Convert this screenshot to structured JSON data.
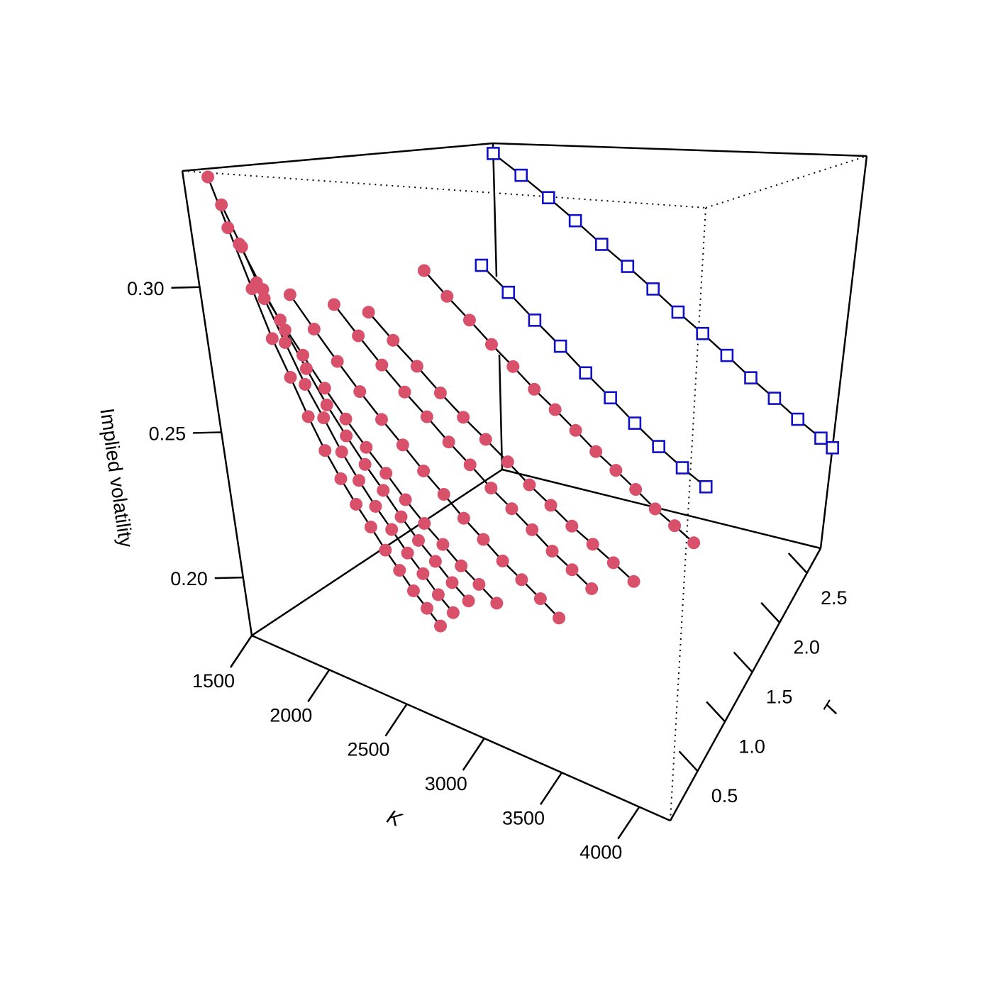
{
  "chart_data": {
    "type": "scatter",
    "title": "",
    "axes": {
      "x": {
        "label": "K",
        "ticks": [
          1500,
          2000,
          2500,
          3000,
          3500,
          4000
        ],
        "tick_labels": [
          "1500",
          "2000",
          "2500",
          "3000",
          "3500",
          "4000"
        ]
      },
      "y": {
        "label": "T",
        "ticks": [
          0.5,
          1.0,
          1.5,
          2.0,
          2.5
        ],
        "tick_labels": [
          "0.5",
          "1.0",
          "1.5",
          "2.0",
          "2.5"
        ]
      },
      "z": {
        "label": "Implied volatility",
        "ticks": [
          0.2,
          0.25,
          0.3
        ],
        "tick_labels": [
          "0.20",
          "0.25",
          "0.30"
        ]
      }
    },
    "marker_colors": {
      "pink": "#d9506b",
      "blue": "#1010c8"
    },
    "series": [
      {
        "marker": "circle",
        "color": "#d9506b",
        "T": 0.083,
        "points": [
          [
            1580,
            0.338
          ],
          [
            1650,
            0.321
          ],
          [
            1740,
            0.301
          ],
          [
            1820,
            0.285
          ],
          [
            1900,
            0.273
          ],
          [
            1980,
            0.261
          ],
          [
            2060,
            0.251
          ],
          [
            2140,
            0.243
          ],
          [
            2220,
            0.236
          ],
          [
            2300,
            0.23
          ],
          [
            2380,
            0.224
          ],
          [
            2460,
            0.219
          ],
          [
            2540,
            0.214
          ],
          [
            2620,
            0.21
          ],
          [
            2700,
            0.206
          ]
        ]
      },
      {
        "marker": "circle",
        "color": "#d9506b",
        "T": 0.17,
        "points": [
          [
            1580,
            0.328
          ],
          [
            1660,
            0.314
          ],
          [
            1750,
            0.297
          ],
          [
            1840,
            0.283
          ],
          [
            1930,
            0.27
          ],
          [
            2020,
            0.26
          ],
          [
            2110,
            0.25
          ],
          [
            2200,
            0.242
          ],
          [
            2290,
            0.235
          ],
          [
            2380,
            0.229
          ],
          [
            2470,
            0.223
          ],
          [
            2560,
            0.218
          ],
          [
            2650,
            0.213
          ],
          [
            2740,
            0.209
          ]
        ]
      },
      {
        "marker": "circle",
        "color": "#d9506b",
        "T": 0.25,
        "points": [
          [
            1600,
            0.314
          ],
          [
            1700,
            0.299
          ],
          [
            1800,
            0.286
          ],
          [
            1900,
            0.274
          ],
          [
            2000,
            0.263
          ],
          [
            2100,
            0.254
          ],
          [
            2200,
            0.246
          ],
          [
            2300,
            0.239
          ],
          [
            2400,
            0.232
          ],
          [
            2500,
            0.226
          ],
          [
            2600,
            0.221
          ],
          [
            2700,
            0.216
          ],
          [
            2800,
            0.212
          ]
        ]
      },
      {
        "marker": "circle",
        "color": "#d9506b",
        "T": 0.33,
        "points": [
          [
            1620,
            0.3
          ],
          [
            1730,
            0.288
          ],
          [
            1840,
            0.277
          ],
          [
            1950,
            0.267
          ],
          [
            2060,
            0.258
          ],
          [
            2170,
            0.25
          ],
          [
            2280,
            0.243
          ],
          [
            2390,
            0.236
          ],
          [
            2500,
            0.23
          ],
          [
            2610,
            0.225
          ],
          [
            2720,
            0.22
          ],
          [
            2830,
            0.216
          ],
          [
            2940,
            0.212
          ]
        ]
      },
      {
        "marker": "circle",
        "color": "#d9506b",
        "T": 0.5,
        "points": [
          [
            1700,
            0.295
          ],
          [
            1820,
            0.284
          ],
          [
            1940,
            0.274
          ],
          [
            2060,
            0.265
          ],
          [
            2180,
            0.257
          ],
          [
            2300,
            0.25
          ],
          [
            2420,
            0.243
          ],
          [
            2540,
            0.237
          ],
          [
            2660,
            0.231
          ],
          [
            2780,
            0.226
          ],
          [
            2900,
            0.221
          ],
          [
            3020,
            0.217
          ],
          [
            3140,
            0.213
          ],
          [
            3260,
            0.209
          ]
        ]
      },
      {
        "marker": "circle",
        "color": "#d9506b",
        "T": 0.75,
        "points": [
          [
            1800,
            0.29
          ],
          [
            1930,
            0.28
          ],
          [
            2060,
            0.271
          ],
          [
            2190,
            0.263
          ],
          [
            2320,
            0.256
          ],
          [
            2450,
            0.249
          ],
          [
            2580,
            0.243
          ],
          [
            2710,
            0.237
          ],
          [
            2840,
            0.232
          ],
          [
            2970,
            0.227
          ],
          [
            3100,
            0.222
          ],
          [
            3230,
            0.218
          ],
          [
            3360,
            0.214
          ]
        ]
      },
      {
        "marker": "circle",
        "color": "#d9506b",
        "T": 1.0,
        "points": [
          [
            1850,
            0.285
          ],
          [
            1990,
            0.276
          ],
          [
            2130,
            0.268
          ],
          [
            2270,
            0.26
          ],
          [
            2410,
            0.253
          ],
          [
            2550,
            0.247
          ],
          [
            2690,
            0.241
          ],
          [
            2830,
            0.235
          ],
          [
            2970,
            0.23
          ],
          [
            3110,
            0.225
          ],
          [
            3250,
            0.221
          ],
          [
            3390,
            0.217
          ],
          [
            3530,
            0.213
          ]
        ]
      },
      {
        "marker": "circle",
        "color": "#d9506b",
        "T": 1.5,
        "points": [
          [
            1900,
            0.296
          ],
          [
            2040,
            0.287
          ],
          [
            2180,
            0.279
          ],
          [
            2320,
            0.271
          ],
          [
            2460,
            0.264
          ],
          [
            2600,
            0.257
          ],
          [
            2740,
            0.251
          ],
          [
            2880,
            0.245
          ],
          [
            3020,
            0.239
          ],
          [
            3160,
            0.234
          ],
          [
            3300,
            0.229
          ],
          [
            3440,
            0.224
          ],
          [
            3580,
            0.22
          ],
          [
            3720,
            0.216
          ]
        ]
      },
      {
        "marker": "square",
        "color": "#1010c8",
        "T": 2.0,
        "points": [
          [
            1950,
            0.293
          ],
          [
            2130,
            0.283
          ],
          [
            2310,
            0.273
          ],
          [
            2490,
            0.264
          ],
          [
            2670,
            0.255
          ],
          [
            2850,
            0.247
          ],
          [
            3030,
            0.239
          ],
          [
            3210,
            0.232
          ],
          [
            3390,
            0.226
          ],
          [
            3570,
            0.221
          ]
        ]
      },
      {
        "marker": "square",
        "color": "#1010c8",
        "T": 2.75,
        "points": [
          [
            1500,
            0.335
          ],
          [
            1700,
            0.325
          ],
          [
            1900,
            0.315
          ],
          [
            2100,
            0.305
          ],
          [
            2300,
            0.295
          ],
          [
            2500,
            0.286
          ],
          [
            2700,
            0.277
          ],
          [
            2900,
            0.268
          ],
          [
            3100,
            0.26
          ],
          [
            3300,
            0.252
          ],
          [
            3500,
            0.244
          ],
          [
            3700,
            0.237
          ],
          [
            3900,
            0.23
          ],
          [
            4100,
            0.224
          ],
          [
            4200,
            0.221
          ]
        ]
      }
    ]
  }
}
